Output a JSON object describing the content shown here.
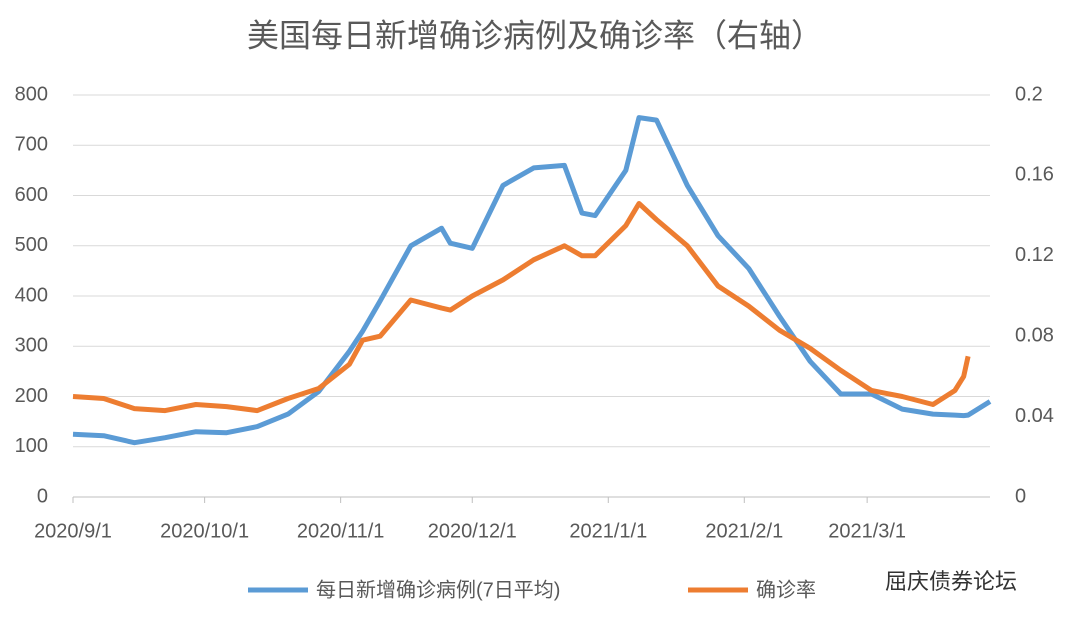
{
  "chart_data": {
    "type": "line",
    "title": "美国每日新增确诊病例及确诊率（右轴）",
    "x": [
      "2020/9/1",
      "2020/9/8",
      "2020/9/15",
      "2020/9/22",
      "2020/9/29",
      "2020/10/6",
      "2020/10/13",
      "2020/10/20",
      "2020/10/27",
      "2020/11/3",
      "2020/11/6",
      "2020/11/10",
      "2020/11/17",
      "2020/11/24",
      "2020/11/26",
      "2020/12/1",
      "2020/12/8",
      "2020/12/15",
      "2020/12/22",
      "2020/12/26",
      "2020/12/29",
      "2021/1/5",
      "2021/1/8",
      "2021/1/12",
      "2021/1/19",
      "2021/1/26",
      "2021/2/2",
      "2021/2/9",
      "2021/2/16",
      "2021/2/23",
      "2021/3/2",
      "2021/3/9",
      "2021/3/16",
      "2021/3/21",
      "2021/3/23",
      "2021/3/24",
      "2021/3/29"
    ],
    "series": [
      {
        "name": "每日新增确诊病例(7日平均)",
        "color": "#5b9bd5",
        "axis": "y",
        "values": [
          125,
          122,
          108,
          118,
          130,
          128,
          140,
          165,
          210,
          290,
          330,
          390,
          500,
          535,
          505,
          495,
          620,
          655,
          660,
          565,
          560,
          650,
          755,
          750,
          620,
          520,
          455,
          360,
          270,
          205,
          205,
          175,
          165,
          163,
          162,
          163,
          190
        ]
      },
      {
        "name": "确诊率",
        "color": "#ed7d31",
        "axis": "y2",
        "values": [
          0.05,
          0.049,
          0.044,
          0.043,
          0.046,
          0.045,
          0.043,
          0.049,
          0.054,
          0.066,
          0.078,
          0.08,
          0.098,
          0.094,
          0.093,
          0.1,
          0.108,
          0.118,
          0.125,
          0.12,
          0.12,
          0.135,
          0.146,
          0.138,
          0.125,
          0.105,
          0.095,
          0.083,
          0.074,
          0.063,
          0.053,
          0.05,
          0.046,
          0.053,
          0.06,
          0.07,
          null
        ]
      }
    ],
    "xlim": [
      "2020/9/1",
      "2021/3/29"
    ],
    "xticks": [
      "2020/9/1",
      "2020/10/1",
      "2020/11/1",
      "2020/12/1",
      "2021/1/1",
      "2021/2/1",
      "2021/3/1"
    ],
    "ylim": [
      0,
      800
    ],
    "yticks": [
      0,
      100,
      200,
      300,
      400,
      500,
      600,
      700,
      800
    ],
    "y2lim": [
      0,
      0.2
    ],
    "y2ticks": [
      0,
      0.04,
      0.08,
      0.12,
      0.16,
      0.2
    ],
    "grid": true,
    "legend": "bottom",
    "watermark": "屈庆债券论坛"
  }
}
